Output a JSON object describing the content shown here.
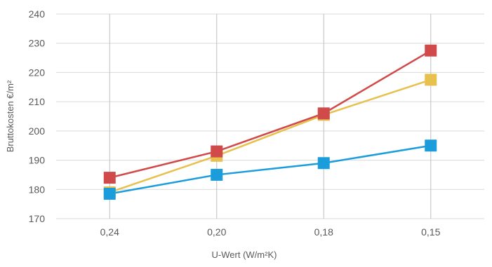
{
  "chart_data": {
    "type": "line",
    "title": "",
    "xlabel": "U-Wert (W/m²K)",
    "ylabel": "Bruttokosten €/m²",
    "categories": [
      "0,24",
      "0,20",
      "0,18",
      "0,15"
    ],
    "ylim": [
      170,
      240
    ],
    "yticks": [
      170,
      180,
      190,
      200,
      210,
      220,
      230,
      240
    ],
    "grid": true,
    "legend": "none",
    "series": [
      {
        "color": "#e8c04e",
        "values": [
          179,
          191.5,
          205.5,
          217.5
        ]
      },
      {
        "color": "#1b9ddb",
        "values": [
          178.5,
          185,
          189,
          195
        ]
      },
      {
        "color": "#d14a4a",
        "values": [
          184,
          193,
          206,
          227.5
        ]
      }
    ]
  }
}
